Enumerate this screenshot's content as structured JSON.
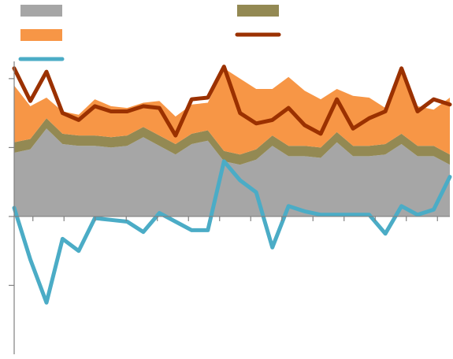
{
  "chart_data": {
    "type": "area",
    "title": "",
    "xlabel": "",
    "ylabel": "",
    "x": [
      1,
      2,
      3,
      4,
      5,
      6,
      7,
      8,
      9,
      10,
      11,
      12,
      13,
      14,
      15,
      16,
      17,
      18,
      19,
      20,
      21,
      22,
      23,
      24,
      25,
      26,
      27,
      28
    ],
    "ylim": [
      -8,
      9
    ],
    "grid": false,
    "legend_position": "top",
    "series": [
      {
        "key": "grey",
        "kind": "stacked-area",
        "color": "#a6a6a6",
        "values": [
          3.7,
          3.9,
          5.1,
          4.2,
          4.1,
          4.1,
          4.0,
          4.1,
          4.6,
          4.1,
          3.6,
          4.2,
          4.4,
          3.2,
          3.0,
          3.3,
          4.1,
          3.5,
          3.5,
          3.4,
          4.3,
          3.5,
          3.5,
          3.6,
          4.2,
          3.5,
          3.5,
          3.0
        ]
      },
      {
        "key": "olive",
        "kind": "stacked-area",
        "color": "#938953",
        "values": [
          0.6,
          0.6,
          0.6,
          0.6,
          0.6,
          0.6,
          0.6,
          0.6,
          0.6,
          0.6,
          0.6,
          0.6,
          0.6,
          0.6,
          0.6,
          0.6,
          0.6,
          0.6,
          0.6,
          0.6,
          0.6,
          0.6,
          0.6,
          0.6,
          0.6,
          0.6,
          0.6,
          0.6
        ]
      },
      {
        "key": "orange",
        "kind": "stacked-area",
        "color": "#f79646",
        "values": [
          3.3,
          1.9,
          1.2,
          1.3,
          1.2,
          2.1,
          1.8,
          1.6,
          1.4,
          2.0,
          1.6,
          1.7,
          1.6,
          4.8,
          4.4,
          3.5,
          2.7,
          4.0,
          3.2,
          2.8,
          2.5,
          2.9,
          2.8,
          2.1,
          3.6,
          2.3,
          2.1,
          3.3
        ]
      },
      {
        "key": "dark-red",
        "kind": "line",
        "color": "#9b3100",
        "values": [
          8.6,
          6.7,
          8.4,
          6.0,
          5.6,
          6.4,
          6.1,
          6.1,
          6.4,
          6.3,
          4.7,
          6.8,
          6.9,
          8.7,
          6.0,
          5.4,
          5.6,
          6.3,
          5.3,
          4.8,
          6.8,
          5.1,
          5.7,
          6.1,
          8.6,
          6.1,
          6.8,
          6.5
        ]
      },
      {
        "key": "blue",
        "kind": "line",
        "color": "#4bacc6",
        "values": [
          0.5,
          -2.5,
          -5.0,
          -1.3,
          -2.0,
          -0.1,
          -0.2,
          -0.3,
          -0.9,
          0.2,
          -0.3,
          -0.8,
          -0.8,
          3.2,
          2.1,
          1.4,
          -1.8,
          0.6,
          0.3,
          0.1,
          0.1,
          0.1,
          0.1,
          -1.0,
          0.6,
          0.1,
          0.4,
          2.3
        ]
      }
    ],
    "axis_ticks": [
      8,
      4,
      0,
      -4
    ],
    "x_ticks_count": 14
  },
  "legend": {
    "items": [
      {
        "key": "grey",
        "label": "",
        "color": "#a6a6a6",
        "shape": "rect"
      },
      {
        "key": "olive",
        "label": "",
        "color": "#938953",
        "shape": "rect"
      },
      {
        "key": "orange",
        "label": "",
        "color": "#f79646",
        "shape": "rect"
      },
      {
        "key": "dark-red",
        "label": "",
        "color": "#9b3100",
        "shape": "line"
      },
      {
        "key": "blue",
        "label": "",
        "color": "#4bacc6",
        "shape": "line"
      }
    ]
  }
}
